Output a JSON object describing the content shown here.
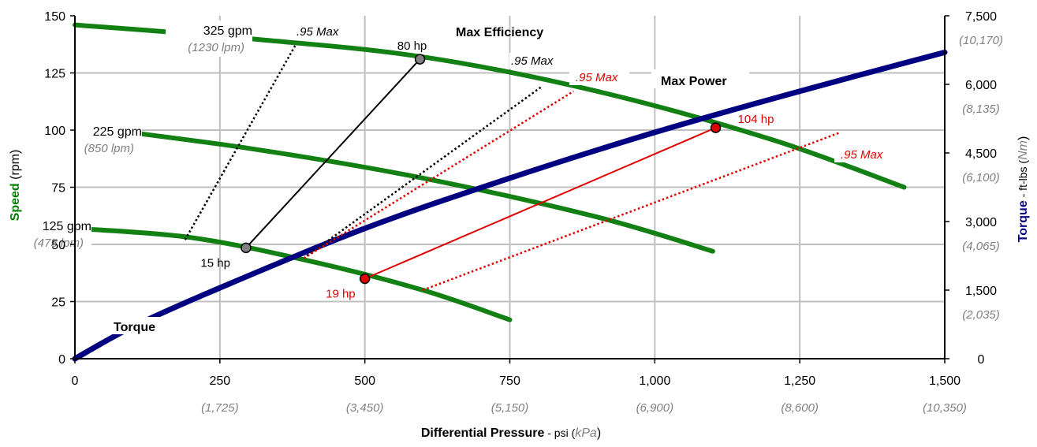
{
  "chart_data": {
    "type": "line",
    "x_axis": {
      "label_bold": "Differential Pressure",
      "label_rest": " - psi (",
      "label_unit": "kPa",
      "label_close": ")",
      "range": [
        0,
        1500
      ],
      "ticks": [
        0,
        250,
        500,
        750,
        1000,
        1250,
        1500
      ],
      "tick_labels": [
        "0",
        "250",
        "500",
        "750",
        "1,000",
        "1,250",
        "1,500"
      ],
      "sub_ticks": [
        250,
        500,
        750,
        1000,
        1250,
        1500
      ],
      "sub_tick_labels": [
        "(1,725)",
        "(3,450)",
        "(5,150)",
        "(6,900)",
        "(8,600)",
        "(10,350)"
      ]
    },
    "y_left": {
      "label_bold": "Speed",
      "label_rest": " (rpm)",
      "range": [
        0,
        150
      ],
      "ticks": [
        0,
        25,
        50,
        75,
        100,
        125,
        150
      ],
      "tick_labels": [
        "0",
        "25",
        "50",
        "75",
        "100",
        "125",
        "150"
      ],
      "color": "#008000"
    },
    "y_right": {
      "label_bold": "Torque",
      "label_rest": " - ft-lbs (",
      "label_unit": "Nm",
      "label_close": ")",
      "range": [
        0,
        7500
      ],
      "ticks": [
        0,
        1500,
        3000,
        4500,
        6000,
        7500
      ],
      "tick_labels": [
        "0",
        "1,500",
        "3,000",
        "4,500",
        "6,000",
        "7,500"
      ],
      "sub_ticks": [
        1500,
        3000,
        4500,
        6000,
        7500
      ],
      "sub_tick_labels": [
        "(2,035)",
        "(4,065)",
        "(6,100)",
        "(8,135)",
        "(10,170)"
      ],
      "color": "#000080"
    },
    "grid": true,
    "series": [
      {
        "name": "325 gpm",
        "sub": "(1230 lpm)",
        "color": "#138013",
        "axis": "left",
        "x": [
          0,
          300,
          600,
          900,
          1200,
          1430
        ],
        "y": [
          146,
          140,
          132,
          117,
          96,
          75
        ]
      },
      {
        "name": "225 gpm",
        "sub": "(850 lpm)",
        "color": "#138013",
        "axis": "left",
        "x": [
          0,
          300,
          600,
          900,
          1100
        ],
        "y": [
          102,
          92,
          79,
          62,
          47
        ]
      },
      {
        "name": "125 gpm",
        "sub": "(475 lpm)",
        "color": "#138013",
        "axis": "left",
        "x": [
          0,
          200,
          400,
          600,
          750
        ],
        "y": [
          57,
          53,
          43,
          30,
          17
        ]
      },
      {
        "name": "Torque",
        "color": "#000080",
        "axis": "right",
        "x": [
          0,
          100,
          250,
          500,
          750,
          1000,
          1250,
          1500
        ],
        "y": [
          0,
          700,
          1550,
          2850,
          3950,
          4950,
          5850,
          6700
        ]
      }
    ],
    "curve_labels": [
      {
        "series": 0,
        "label": "325 gpm",
        "sub": "(1230 lpm)"
      },
      {
        "series": 1,
        "label": "225 gpm",
        "sub": "(850 lpm)"
      },
      {
        "series": 2,
        "label": "125 gpm",
        "sub": "(475 lpm)"
      }
    ],
    "torque_label": "Torque",
    "max_efficiency": {
      "title": "Max Efficiency",
      "points": [
        {
          "x": 295,
          "y": 48.5,
          "label": "15 hp"
        },
        {
          "x": 595,
          "y": 131,
          "label": "80 hp"
        }
      ],
      "band_label": ".95 Max",
      "band_lines": [
        {
          "from": [
            190,
            52
          ],
          "to": [
            380,
            137
          ],
          "label": ".95 Max"
        },
        {
          "from": [
            400,
            45
          ],
          "to": [
            805,
            119
          ],
          "label": ".95 Max"
        }
      ]
    },
    "max_power": {
      "title": "Max Power",
      "points": [
        {
          "x": 500,
          "y": 35,
          "label": "19 hp"
        },
        {
          "x": 1105,
          "y": 101,
          "label": "104 hp"
        }
      ],
      "band_lines": [
        {
          "from": [
            395,
            44
          ],
          "to": [
            860,
            117
          ],
          "label": ".95 Max"
        },
        {
          "from": [
            600,
            30
          ],
          "to": [
            1320,
            99
          ],
          "label": ".95 Max"
        }
      ]
    }
  }
}
